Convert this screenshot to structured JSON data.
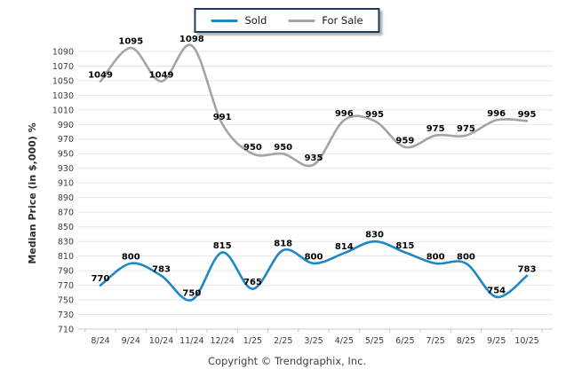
{
  "chart_data": {
    "type": "line",
    "title": "",
    "xlabel": "",
    "ylabel": "Median Price (in $,000) %",
    "categories": [
      "8/24",
      "9/24",
      "10/24",
      "11/24",
      "12/24",
      "1/25",
      "2/25",
      "3/25",
      "4/25",
      "5/25",
      "6/25",
      "7/25",
      "8/25",
      "9/25",
      "10/25"
    ],
    "series": [
      {
        "name": "Sold",
        "color": "#1e87c5",
        "values": [
          770,
          800,
          783,
          750,
          815,
          765,
          818,
          800,
          814,
          830,
          815,
          800,
          800,
          754,
          783
        ]
      },
      {
        "name": "For Sale",
        "color": "#a4a4a4",
        "values": [
          1049,
          1095,
          1049,
          1098,
          991,
          950,
          950,
          935,
          996,
          995,
          959,
          975,
          975,
          996,
          995
        ]
      }
    ],
    "ylim": [
      710,
      1090
    ],
    "ytick_step": 20,
    "grid": "horizontal",
    "legend_position": "top-center",
    "smooth": true,
    "data_labels": true
  },
  "footer": {
    "text": "Copyright © Trendgraphix, Inc."
  },
  "style": {
    "grid_color": "#e6e6e6",
    "axis_color": "#c3ccd4",
    "tick_label_color": "#3d3d3d",
    "data_label_color": "#000000",
    "ylabel_color": "#2b2b2b",
    "legend_border_color": "#1d3a5f"
  }
}
